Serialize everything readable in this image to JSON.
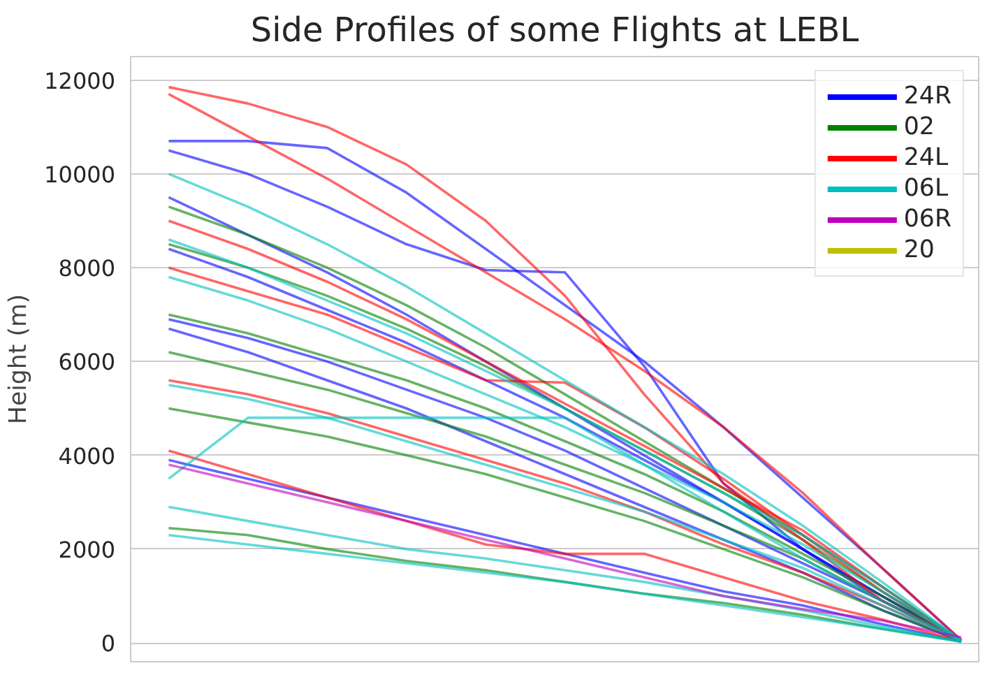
{
  "chart_data": {
    "type": "line",
    "title": "Side Profiles of some Flights at LEBL",
    "ylabel": "Height (m)",
    "categories": [
      null,
      null,
      null,
      null,
      null,
      null,
      null,
      null,
      null,
      null,
      null
    ],
    "ylim": [
      -400,
      12500
    ],
    "yticks": [
      0,
      2000,
      4000,
      6000,
      8000,
      10000,
      12000
    ],
    "tick_labels": "y",
    "grid": "y",
    "legend": "top right",
    "line_style": "solid",
    "marker": "none",
    "series": [
      {
        "name": "24R",
        "color": "#0000ff",
        "values": [
          10700,
          10700,
          10550,
          9600,
          8400,
          7200,
          6000,
          4600,
          3100,
          1600,
          50
        ]
      },
      {
        "color": "#0000ff",
        "values": [
          10500,
          10000,
          9300,
          8500,
          7950,
          7900,
          5900,
          3400,
          2000,
          900,
          50
        ]
      },
      {
        "color": "#0000ff",
        "values": [
          9500,
          8700,
          7900,
          7000,
          6000,
          5000,
          4000,
          3000,
          2000,
          1000,
          50
        ]
      },
      {
        "color": "#0000ff",
        "values": [
          8400,
          7800,
          7100,
          6400,
          5600,
          4800,
          3900,
          3000,
          2000,
          1000,
          50
        ]
      },
      {
        "color": "#0000ff",
        "values": [
          6900,
          6500,
          6000,
          5400,
          4800,
          4100,
          3300,
          2500,
          1700,
          900,
          50
        ]
      },
      {
        "color": "#0000ff",
        "values": [
          3900,
          3500,
          3100,
          2700,
          2300,
          1900,
          1500,
          1100,
          800,
          400,
          30
        ]
      },
      {
        "color": "#0000ff",
        "values": [
          6700,
          6200,
          5600,
          5000,
          4300,
          3600,
          2900,
          2200,
          1500,
          700,
          40
        ]
      },
      {
        "name": "02",
        "color": "#008000",
        "values": [
          9300,
          8700,
          8000,
          7200,
          6300,
          5300,
          4300,
          3300,
          2300,
          1200,
          50
        ]
      },
      {
        "color": "#008000",
        "values": [
          8500,
          8000,
          7400,
          6700,
          5900,
          5000,
          4100,
          3200,
          2200,
          1100,
          50
        ]
      },
      {
        "color": "#008000",
        "values": [
          7000,
          6600,
          6100,
          5600,
          5000,
          4300,
          3600,
          2800,
          1900,
          1000,
          50
        ]
      },
      {
        "color": "#008000",
        "values": [
          6200,
          5800,
          5400,
          4900,
          4400,
          3800,
          3200,
          2500,
          1800,
          900,
          50
        ]
      },
      {
        "color": "#008000",
        "values": [
          5000,
          4700,
          4400,
          4000,
          3600,
          3100,
          2600,
          2000,
          1400,
          700,
          40
        ]
      },
      {
        "color": "#008000",
        "values": [
          2450,
          2300,
          2000,
          1750,
          1550,
          1300,
          1050,
          850,
          600,
          300,
          30
        ]
      },
      {
        "name": "24L",
        "color": "#ff0000",
        "values": [
          11850,
          11500,
          11000,
          10200,
          9000,
          7400,
          5300,
          3400,
          2200,
          900,
          80
        ]
      },
      {
        "color": "#ff0000",
        "values": [
          11700,
          10800,
          9900,
          8900,
          7900,
          6900,
          5800,
          4600,
          3200,
          1600,
          60
        ]
      },
      {
        "color": "#ff0000",
        "values": [
          9000,
          8400,
          7700,
          6900,
          6000,
          5100,
          4200,
          3300,
          2400,
          1200,
          50
        ]
      },
      {
        "color": "#ff0000",
        "values": [
          8000,
          7500,
          7000,
          6300,
          5600,
          5550,
          4600,
          3500,
          2300,
          1100,
          50
        ]
      },
      {
        "color": "#ff0000",
        "values": [
          5600,
          5300,
          4900,
          4400,
          3900,
          3400,
          2800,
          2100,
          1500,
          800,
          40
        ]
      },
      {
        "color": "#ff0000",
        "values": [
          4100,
          3600,
          3100,
          2600,
          2100,
          1900,
          1900,
          1400,
          900,
          500,
          30
        ]
      },
      {
        "name": "06L",
        "color": "#00bfbf",
        "values": [
          10000,
          9300,
          8500,
          7600,
          6600,
          5600,
          4600,
          3600,
          2500,
          1300,
          50
        ]
      },
      {
        "color": "#00bfbf",
        "values": [
          8600,
          8000,
          7300,
          6600,
          5800,
          5000,
          4100,
          3200,
          2300,
          1200,
          50
        ]
      },
      {
        "color": "#00bfbf",
        "values": [
          7800,
          7300,
          6700,
          6000,
          5300,
          4600,
          3800,
          3000,
          2100,
          1100,
          50
        ]
      },
      {
        "color": "#00bfbf",
        "values": [
          5500,
          5200,
          4800,
          4300,
          3800,
          3300,
          2800,
          2200,
          1600,
          800,
          40
        ]
      },
      {
        "color": "#00bfbf",
        "values": [
          3500,
          4800,
          4800,
          4800,
          4800,
          4800,
          3800,
          2800,
          1800,
          900,
          40
        ]
      },
      {
        "color": "#00bfbf",
        "values": [
          2900,
          2600,
          2300,
          2000,
          1800,
          1550,
          1300,
          1000,
          700,
          350,
          30
        ]
      },
      {
        "color": "#00bfbf",
        "values": [
          2300,
          2100,
          1900,
          1700,
          1500,
          1300,
          1050,
          800,
          550,
          300,
          30
        ]
      },
      {
        "name": "06R",
        "color": "#bf00bf",
        "values": [
          3800,
          3400,
          3000,
          2600,
          2200,
          1800,
          1400,
          1000,
          720,
          480,
          120
        ]
      },
      {
        "name": "20",
        "color": "#bfbf00",
        "values": [
          null,
          null,
          null,
          null,
          null,
          null,
          null,
          null,
          null,
          null,
          null
        ]
      }
    ]
  }
}
